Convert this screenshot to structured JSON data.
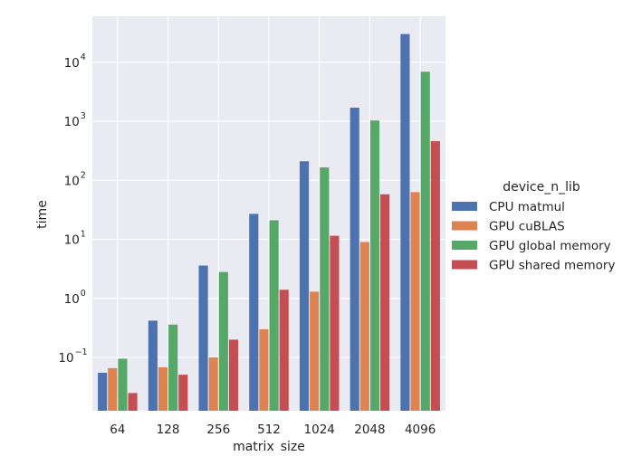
{
  "chart_data": {
    "type": "bar",
    "title": "",
    "xlabel": "matrix_size",
    "ylabel": "time",
    "yscale": "log",
    "ylim": [
      0.0125,
      60000
    ],
    "grid": true,
    "categories": [
      "64",
      "128",
      "256",
      "512",
      "1024",
      "2048",
      "4096"
    ],
    "yticks": [
      {
        "value": 0.1,
        "base": "10",
        "exp": "−1"
      },
      {
        "value": 1,
        "base": "10",
        "exp": "0"
      },
      {
        "value": 10,
        "base": "10",
        "exp": "1"
      },
      {
        "value": 100,
        "base": "10",
        "exp": "2"
      },
      {
        "value": 1000,
        "base": "10",
        "exp": "3"
      },
      {
        "value": 10000,
        "base": "10",
        "exp": "4"
      }
    ],
    "legend": {
      "title": "device_n_lib",
      "placement": "right"
    },
    "series": [
      {
        "name": "CPU matmul",
        "color": "#4c72b0",
        "values": [
          0.055,
          0.42,
          3.6,
          27,
          210,
          1700,
          30000
        ]
      },
      {
        "name": "GPU cuBLAS",
        "color": "#dd8452",
        "values": [
          0.066,
          0.068,
          0.1,
          0.3,
          1.3,
          9.0,
          63
        ]
      },
      {
        "name": "GPU global memory",
        "color": "#55a868",
        "values": [
          0.095,
          0.36,
          2.8,
          21,
          165,
          1030,
          6900
        ]
      },
      {
        "name": "GPU shared memory",
        "color": "#c44e52",
        "values": [
          0.025,
          0.051,
          0.2,
          1.4,
          11.5,
          58,
          460
        ]
      }
    ]
  }
}
